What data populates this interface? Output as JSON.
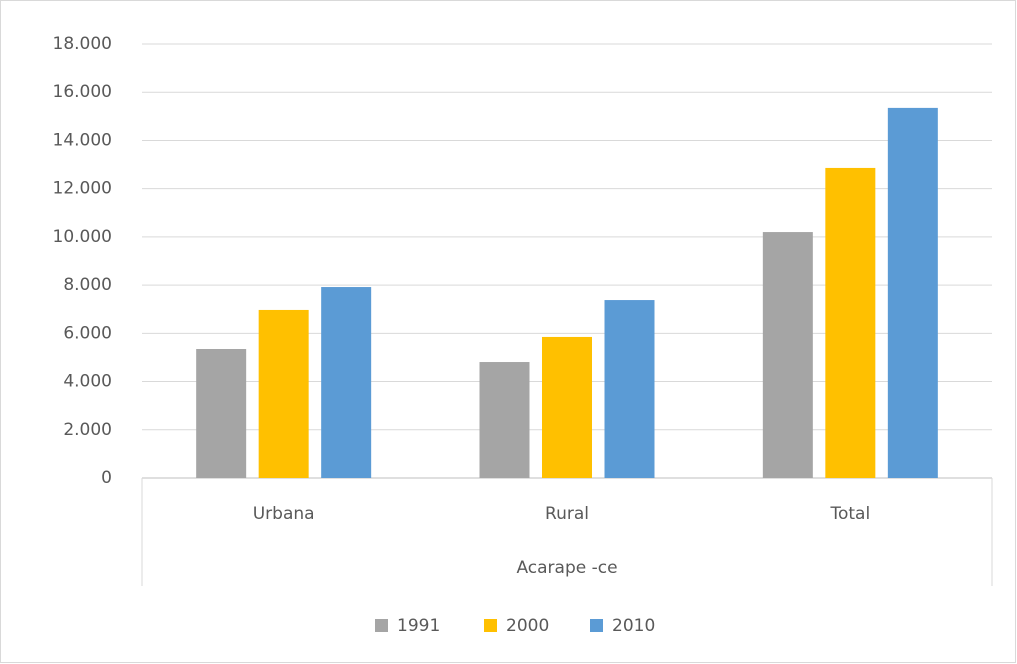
{
  "chart_data": {
    "type": "bar",
    "categories": [
      "Urbana",
      "Rural",
      "Total"
    ],
    "x_group_label": "Acarape -ce",
    "series": [
      {
        "name": "1991",
        "color": "#a5a5a5",
        "values": [
          5350,
          4810,
          10200
        ]
      },
      {
        "name": "2000",
        "color": "#ffc000",
        "values": [
          6970,
          5850,
          12860
        ]
      },
      {
        "name": "2010",
        "color": "#5b9bd5",
        "values": [
          7920,
          7380,
          15350
        ]
      }
    ],
    "ylim": [
      0,
      18000
    ],
    "yticks": [
      0,
      {
        "value": 2000,
        "label": "2.000"
      },
      {
        "value": 4000,
        "label": "4.000"
      },
      {
        "value": 6000,
        "label": "6.000"
      },
      {
        "value": 8000,
        "label": "8.000"
      },
      {
        "value": 10000,
        "label": "10.000"
      },
      {
        "value": 12000,
        "label": "12.000"
      },
      {
        "value": 14000,
        "label": "14.000"
      },
      {
        "value": 16000,
        "label": "16.000"
      },
      {
        "value": 18000,
        "label": "18.000"
      }
    ],
    "grid": true,
    "legend": "bottom"
  }
}
